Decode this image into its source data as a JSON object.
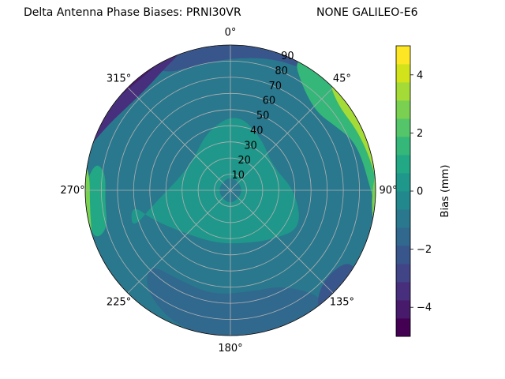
{
  "chart_data": {
    "type": "heatmap",
    "projection": "polar",
    "title": "Delta Antenna Phase Biases: PRNI30VR",
    "title_right": "NONE GALILEO-E6",
    "theta_direction": "clockwise",
    "theta_zero": "top",
    "angular_ticks": [
      "0°",
      "45°",
      "90°",
      "135°",
      "180°",
      "225°",
      "270°",
      "315°"
    ],
    "radial_ticks": [
      "10",
      "20",
      "30",
      "40",
      "50",
      "60",
      "70",
      "80",
      "90"
    ],
    "rlim": [
      0,
      90
    ],
    "grid": true,
    "colorbar": {
      "label": "Bias (mm)",
      "ticks": [
        "−4",
        "−2",
        "0",
        "2",
        "4"
      ],
      "tick_values": [
        -4,
        -2,
        0,
        2,
        4
      ],
      "vmin": -5,
      "vmax": 5,
      "levels": [
        -5,
        -4.333,
        -3.667,
        -3,
        -2.333,
        -1.667,
        -1,
        -0.333,
        0.333,
        1,
        1.667,
        2.333,
        3,
        3.667,
        4.333,
        5
      ],
      "colormap": "viridis",
      "colors": [
        "#440154",
        "#481a6c",
        "#472f7d",
        "#414487",
        "#39568c",
        "#31688e",
        "#2a788e",
        "#23888e",
        "#1f988b",
        "#22a884",
        "#35b779",
        "#54c568",
        "#7ad151",
        "#a5db36",
        "#d2e21b",
        "#fde725"
      ]
    },
    "field": [
      {
        "name": "background",
        "value": -0.6
      },
      {
        "name": "north-rim",
        "value": -2.3
      },
      {
        "name": "northwest-band",
        "value": -3.3
      },
      {
        "name": "northwest-edge",
        "value": -4.3
      },
      {
        "name": "northeast-high",
        "value": 2.0
      },
      {
        "name": "northeast-edge",
        "value": 4.3
      },
      {
        "name": "east-edge",
        "value": 3.3
      },
      {
        "name": "central-ring",
        "value": 0.6
      },
      {
        "name": "west-ring",
        "value": 1.3
      },
      {
        "name": "west-edge",
        "value": 3.3
      },
      {
        "name": "south-low",
        "value": -1.3
      },
      {
        "name": "southeast-low",
        "value": -2.3
      },
      {
        "name": "center-hole",
        "value": -0.6
      }
    ]
  }
}
